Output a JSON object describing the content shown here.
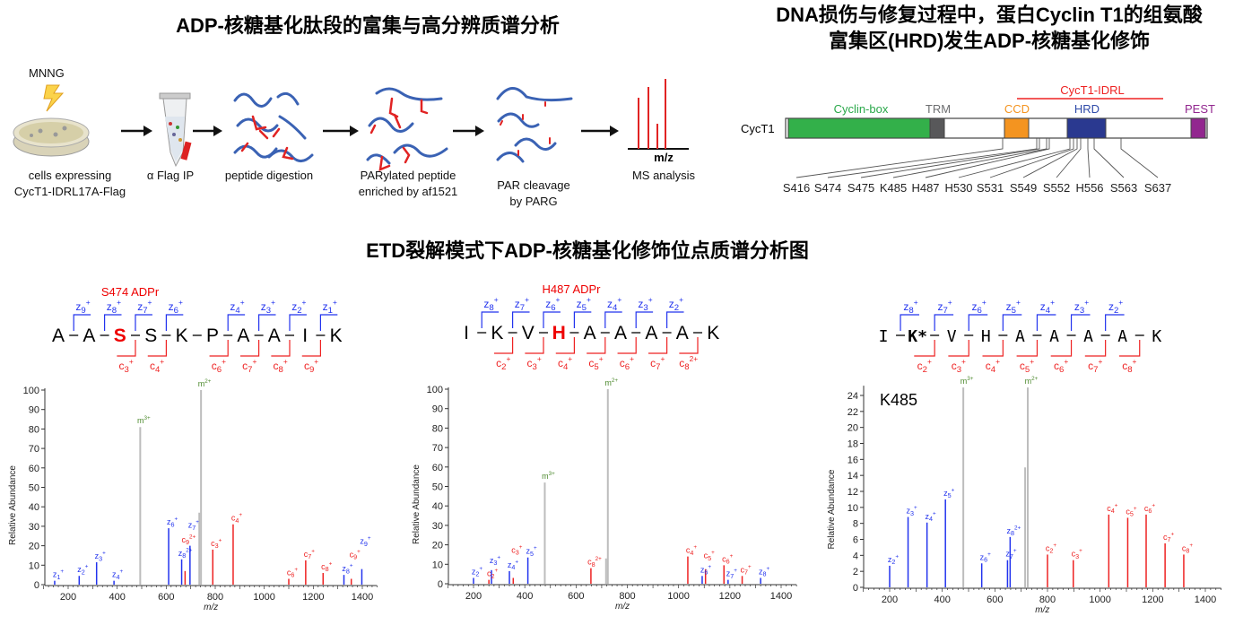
{
  "headers": {
    "workflow_title": "ADP-核糖基化肽段的富集与高分辨质谱分析",
    "domain_title_line1": "DNA损伤与修复过程中，蛋白Cyclin T1的组氨酸",
    "domain_title_line2": "富集区(HRD)发生ADP-核糖基化修饰",
    "spectra_title": "ETD裂解模式下ADP-核糖基化修饰位点质谱分析图"
  },
  "workflow": {
    "treatment": "MNNG",
    "steps": [
      {
        "label1": "cells expressing",
        "label2": "CycT1-IDRL17A-Flag",
        "icon": "petri-dish-icon"
      },
      {
        "label1": "α Flag IP",
        "label2": "",
        "icon": "tube-icon"
      },
      {
        "label1": "peptide digestion",
        "label2": "",
        "icon": "peptides-icon"
      },
      {
        "label1": "PARylated peptide",
        "label2": "enriched by af1521",
        "icon": "parylated-peptides-icon"
      },
      {
        "label1": "PAR cleavage",
        "label2": "by PARG",
        "icon": "cleaved-peptides-icon"
      },
      {
        "label1": "MS analysis",
        "label2": "",
        "icon": "ms-spectrum-icon",
        "axis": "m/z"
      }
    ]
  },
  "domain_map": {
    "protein": "CycT1",
    "region_label": "CycT1-IDRL",
    "region_color": "#ee2222",
    "domains": [
      {
        "name": "Cyclin-box",
        "color": "#33b04a",
        "label_color": "#2aa84a"
      },
      {
        "name": "TRM",
        "color": "#58585a",
        "label_color": "#6d6e70"
      },
      {
        "name": "CCD",
        "color": "#f49420",
        "label_color": "#f49420"
      },
      {
        "name": "HRD",
        "color": "#2a3990",
        "label_color": "#2e4aa8"
      },
      {
        "name": "PEST",
        "color": "#92278f",
        "label_color": "#92278f"
      }
    ],
    "sites": [
      "S416",
      "S474",
      "S475",
      "K485",
      "H487",
      "H530",
      "S531",
      "S549",
      "S552",
      "H556",
      "S563",
      "S637"
    ]
  },
  "colors": {
    "z": "#2233ee",
    "c": "#ee2222",
    "m": "#b8b8b8",
    "m_label": "#4d8a2e",
    "highlight": "#ee0000"
  },
  "chart_data": [
    {
      "type": "bar",
      "title": "S474 ADPr",
      "peptide": {
        "residues": [
          "A",
          "A",
          "S",
          "S",
          "K",
          "P",
          "A",
          "A",
          "I",
          "K"
        ],
        "modified_index": 2,
        "z_ions": [
          {
            "gap": 0,
            "sub": "9",
            "charge": "+"
          },
          {
            "gap": 1,
            "sub": "8",
            "charge": "+"
          },
          {
            "gap": 2,
            "sub": "7",
            "charge": "+"
          },
          {
            "gap": 3,
            "sub": "6",
            "charge": "+"
          },
          {
            "gap": 5,
            "sub": "4",
            "charge": "+"
          },
          {
            "gap": 6,
            "sub": "3",
            "charge": "+"
          },
          {
            "gap": 7,
            "sub": "2",
            "charge": "+"
          },
          {
            "gap": 8,
            "sub": "1",
            "charge": "+"
          }
        ],
        "c_ions": [
          {
            "gap": 2,
            "sub": "3",
            "charge": "+"
          },
          {
            "gap": 3,
            "sub": "4",
            "charge": "+"
          },
          {
            "gap": 5,
            "sub": "6",
            "charge": "+"
          },
          {
            "gap": 6,
            "sub": "7",
            "charge": "+"
          },
          {
            "gap": 7,
            "sub": "8",
            "charge": "+"
          },
          {
            "gap": 8,
            "sub": "9",
            "charge": "+"
          }
        ]
      },
      "xlabel": "m/z",
      "ylabel": "Relative Abundance",
      "xlim": [
        100,
        1460
      ],
      "ylim": [
        0,
        100
      ],
      "xticks": [
        200,
        400,
        600,
        800,
        1000,
        1200,
        1400
      ],
      "yticks": [
        0,
        10,
        20,
        30,
        40,
        50,
        60,
        70,
        80,
        90,
        100
      ],
      "peaks": [
        {
          "x": 145,
          "y": 2,
          "ion": "z",
          "sub": "1",
          "charge": "+"
        },
        {
          "x": 245,
          "y": 4.5,
          "ion": "z",
          "sub": "2",
          "charge": "+"
        },
        {
          "x": 316,
          "y": 11.5,
          "ion": "z",
          "sub": "3",
          "charge": "+"
        },
        {
          "x": 387,
          "y": 2,
          "ion": "z",
          "sub": "4",
          "charge": "+"
        },
        {
          "x": 494,
          "y": 81,
          "ion": "m",
          "sub": "",
          "charge": "3+"
        },
        {
          "x": 610,
          "y": 29,
          "ion": "z",
          "sub": "6",
          "charge": "+"
        },
        {
          "x": 663,
          "y": 13,
          "ion": "z",
          "sub": "8",
          "charge": "2+"
        },
        {
          "x": 677,
          "y": 7,
          "ion": "c",
          "sub": "9",
          "charge": "2+"
        },
        {
          "x": 697,
          "y": 20,
          "ion": "z",
          "sub": "7",
          "charge": "+"
        },
        {
          "x": 735,
          "y": 37,
          "ion": "other",
          "sub": "",
          "charge": ""
        },
        {
          "x": 742,
          "y": 100,
          "ion": "m",
          "sub": "",
          "charge": "2+"
        },
        {
          "x": 790,
          "y": 18,
          "ion": "c",
          "sub": "3",
          "charge": "+"
        },
        {
          "x": 873,
          "y": 31,
          "ion": "c",
          "sub": "4",
          "charge": "+"
        },
        {
          "x": 1100,
          "y": 3,
          "ion": "c",
          "sub": "6",
          "charge": "+"
        },
        {
          "x": 1169,
          "y": 12.5,
          "ion": "c",
          "sub": "7",
          "charge": "+"
        },
        {
          "x": 1240,
          "y": 6,
          "ion": "c",
          "sub": "8",
          "charge": "+"
        },
        {
          "x": 1325,
          "y": 5,
          "ion": "z",
          "sub": "8",
          "charge": "+"
        },
        {
          "x": 1355,
          "y": 3,
          "ion": "c",
          "sub": "9",
          "charge": "+"
        },
        {
          "x": 1398,
          "y": 8,
          "ion": "z",
          "sub": "9",
          "charge": "+"
        }
      ]
    },
    {
      "type": "bar",
      "title": "H487 ADPr",
      "peptide": {
        "residues": [
          "I",
          "K",
          "V",
          "H",
          "A",
          "A",
          "A",
          "A",
          "K"
        ],
        "modified_index": 3,
        "z_ions": [
          {
            "gap": 0,
            "sub": "8",
            "charge": "+"
          },
          {
            "gap": 1,
            "sub": "7",
            "charge": "+"
          },
          {
            "gap": 2,
            "sub": "6",
            "charge": "+"
          },
          {
            "gap": 3,
            "sub": "5",
            "charge": "+"
          },
          {
            "gap": 4,
            "sub": "4",
            "charge": "+"
          },
          {
            "gap": 5,
            "sub": "3",
            "charge": "+"
          },
          {
            "gap": 6,
            "sub": "2",
            "charge": "+"
          }
        ],
        "c_ions": [
          {
            "gap": 1,
            "sub": "2",
            "charge": "+"
          },
          {
            "gap": 2,
            "sub": "3",
            "charge": "+"
          },
          {
            "gap": 3,
            "sub": "4",
            "charge": "+"
          },
          {
            "gap": 4,
            "sub": "5",
            "charge": "+"
          },
          {
            "gap": 5,
            "sub": "6",
            "charge": "+"
          },
          {
            "gap": 6,
            "sub": "7",
            "charge": "+"
          },
          {
            "gap": 7,
            "sub": "8",
            "charge": "2+"
          }
        ]
      },
      "xlabel": "m/z",
      "ylabel": "Relative Abundance",
      "xlim": [
        100,
        1460
      ],
      "ylim": [
        0,
        100
      ],
      "xticks": [
        200,
        400,
        600,
        800,
        1000,
        1200,
        1400
      ],
      "yticks": [
        0,
        10,
        20,
        30,
        40,
        50,
        60,
        70,
        80,
        90,
        100
      ],
      "peaks": [
        {
          "x": 200,
          "y": 3,
          "ion": "z",
          "sub": "2",
          "charge": "+"
        },
        {
          "x": 260,
          "y": 2,
          "ion": "c",
          "sub": "2",
          "charge": "+"
        },
        {
          "x": 270,
          "y": 7,
          "ion": "z",
          "sub": "3",
          "charge": "+"
        },
        {
          "x": 340,
          "y": 6.5,
          "ion": "z",
          "sub": "4",
          "charge": "+"
        },
        {
          "x": 355,
          "y": 3,
          "ion": "c",
          "sub": "3",
          "charge": "+"
        },
        {
          "x": 412,
          "y": 13.5,
          "ion": "z",
          "sub": "5",
          "charge": "+"
        },
        {
          "x": 478,
          "y": 52,
          "ion": "m",
          "sub": "",
          "charge": "3+"
        },
        {
          "x": 658,
          "y": 8,
          "ion": "c",
          "sub": "8",
          "charge": "2+"
        },
        {
          "x": 717,
          "y": 13,
          "ion": "other",
          "sub": "",
          "charge": ""
        },
        {
          "x": 724,
          "y": 100,
          "ion": "m",
          "sub": "",
          "charge": "2+"
        },
        {
          "x": 1036,
          "y": 14,
          "ion": "c",
          "sub": "4",
          "charge": "+"
        },
        {
          "x": 1092,
          "y": 4,
          "ion": "z",
          "sub": "6",
          "charge": "+"
        },
        {
          "x": 1105,
          "y": 7.5,
          "ion": "c",
          "sub": "5",
          "charge": "+"
        },
        {
          "x": 1177,
          "y": 9.5,
          "ion": "c",
          "sub": "6",
          "charge": "+"
        },
        {
          "x": 1193,
          "y": 2,
          "ion": "z",
          "sub": "7",
          "charge": "+"
        },
        {
          "x": 1248,
          "y": 4,
          "ion": "c",
          "sub": "7",
          "charge": "+"
        },
        {
          "x": 1320,
          "y": 3,
          "ion": "z",
          "sub": "8",
          "charge": "+"
        }
      ]
    },
    {
      "type": "bar",
      "title": "",
      "annotation": "K485",
      "peptide": {
        "residues": [
          "I",
          "K*",
          "V",
          "H",
          "A",
          "A",
          "A",
          "A",
          "K"
        ],
        "modified_index": 1,
        "z_ions": [
          {
            "gap": 0,
            "sub": "8",
            "charge": "+"
          },
          {
            "gap": 1,
            "sub": "7",
            "charge": "+"
          },
          {
            "gap": 2,
            "sub": "6",
            "charge": "+"
          },
          {
            "gap": 3,
            "sub": "5",
            "charge": "+"
          },
          {
            "gap": 4,
            "sub": "4",
            "charge": "+"
          },
          {
            "gap": 5,
            "sub": "3",
            "charge": "+"
          },
          {
            "gap": 6,
            "sub": "2",
            "charge": "+"
          }
        ],
        "c_ions": [
          {
            "gap": 1,
            "sub": "2",
            "charge": "+"
          },
          {
            "gap": 2,
            "sub": "3",
            "charge": "+"
          },
          {
            "gap": 3,
            "sub": "4",
            "charge": "+"
          },
          {
            "gap": 4,
            "sub": "5",
            "charge": "+"
          },
          {
            "gap": 5,
            "sub": "6",
            "charge": "+"
          },
          {
            "gap": 6,
            "sub": "7",
            "charge": "+"
          },
          {
            "gap": 7,
            "sub": "8",
            "charge": "+"
          }
        ]
      },
      "xlabel": "m/z",
      "ylabel": "Relative Abundance",
      "xlim": [
        100,
        1460
      ],
      "ylim": [
        0,
        25
      ],
      "xticks": [
        200,
        400,
        600,
        800,
        1000,
        1200,
        1400
      ],
      "yticks": [
        0,
        2,
        4,
        6,
        8,
        10,
        12,
        14,
        16,
        18,
        20,
        22,
        24
      ],
      "peaks": [
        {
          "x": 200,
          "y": 2.7,
          "ion": "z",
          "sub": "2",
          "charge": "+"
        },
        {
          "x": 270,
          "y": 8.8,
          "ion": "z",
          "sub": "3",
          "charge": "+"
        },
        {
          "x": 342,
          "y": 8.1,
          "ion": "z",
          "sub": "4",
          "charge": "+"
        },
        {
          "x": 412,
          "y": 11,
          "ion": "z",
          "sub": "5",
          "charge": "+"
        },
        {
          "x": 480,
          "y": 25,
          "ion": "m",
          "sub": "",
          "charge": "3+"
        },
        {
          "x": 550,
          "y": 3,
          "ion": "z",
          "sub": "6",
          "charge": "+"
        },
        {
          "x": 648,
          "y": 3.4,
          "ion": "z",
          "sub": "7",
          "charge": "+"
        },
        {
          "x": 658,
          "y": 6.3,
          "ion": "z",
          "sub": "8",
          "charge": "2+"
        },
        {
          "x": 715,
          "y": 15,
          "ion": "other",
          "sub": "",
          "charge": ""
        },
        {
          "x": 725,
          "y": 25,
          "ion": "m",
          "sub": "",
          "charge": "2+"
        },
        {
          "x": 800,
          "y": 4.1,
          "ion": "c",
          "sub": "2",
          "charge": "+"
        },
        {
          "x": 898,
          "y": 3.4,
          "ion": "c",
          "sub": "3",
          "charge": "+"
        },
        {
          "x": 1033,
          "y": 9.1,
          "ion": "c",
          "sub": "4",
          "charge": "+"
        },
        {
          "x": 1105,
          "y": 8.7,
          "ion": "c",
          "sub": "5",
          "charge": "+"
        },
        {
          "x": 1175,
          "y": 9.1,
          "ion": "c",
          "sub": "6",
          "charge": "+"
        },
        {
          "x": 1247,
          "y": 5.5,
          "ion": "c",
          "sub": "7",
          "charge": "+"
        },
        {
          "x": 1318,
          "y": 4.1,
          "ion": "c",
          "sub": "8",
          "charge": "+"
        }
      ]
    }
  ]
}
